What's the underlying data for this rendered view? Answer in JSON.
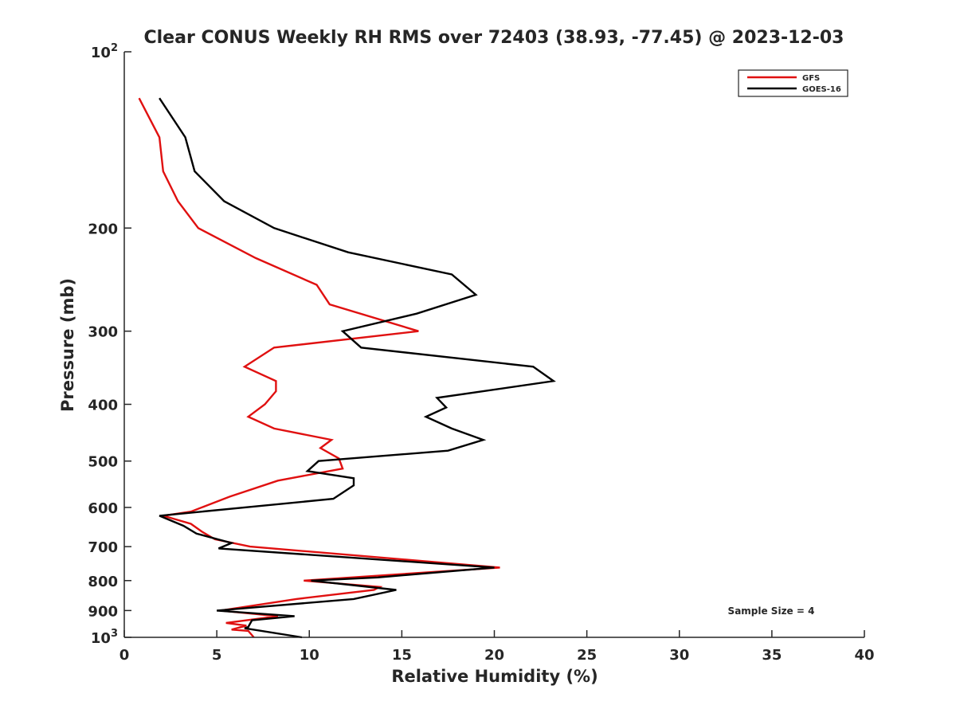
{
  "chart_data": {
    "type": "line",
    "title": "Clear CONUS Weekly RH RMS over 72403 (38.93, -77.45) @ 2023-12-03",
    "xlabel": "Relative Humidity (%)",
    "ylabel": "Pressure (mb)",
    "xlim": [
      0,
      40
    ],
    "ylim": [
      100,
      1000
    ],
    "y_scale": "log",
    "y_reversed": true,
    "x_ticks": [
      "0",
      "5",
      "10",
      "15",
      "20",
      "25",
      "30",
      "35",
      "40"
    ],
    "y_ticks": [
      {
        "value": 100,
        "base": "10",
        "sup": "2"
      },
      {
        "value": 200,
        "label": "200"
      },
      {
        "value": 300,
        "label": "300"
      },
      {
        "value": 400,
        "label": "400"
      },
      {
        "value": 500,
        "label": "500"
      },
      {
        "value": 600,
        "label": "600"
      },
      {
        "value": 700,
        "label": "700"
      },
      {
        "value": 800,
        "label": "800"
      },
      {
        "value": 900,
        "label": "900"
      },
      {
        "value": 1000,
        "base": "10",
        "sup": "3"
      }
    ],
    "legend_position": "top-right",
    "grid": false,
    "annotation": "Sample Size = 4",
    "series": [
      {
        "name": "GFS",
        "color": "#e01010",
        "points": [
          {
            "x": 0.8,
            "y": 120
          },
          {
            "x": 1.9,
            "y": 140
          },
          {
            "x": 2.1,
            "y": 160
          },
          {
            "x": 2.9,
            "y": 180
          },
          {
            "x": 4.0,
            "y": 200
          },
          {
            "x": 7.1,
            "y": 225
          },
          {
            "x": 10.4,
            "y": 250
          },
          {
            "x": 11.1,
            "y": 270
          },
          {
            "x": 15.9,
            "y": 300
          },
          {
            "x": 8.1,
            "y": 320
          },
          {
            "x": 6.5,
            "y": 345
          },
          {
            "x": 8.2,
            "y": 365
          },
          {
            "x": 8.2,
            "y": 380
          },
          {
            "x": 7.6,
            "y": 400
          },
          {
            "x": 6.7,
            "y": 420
          },
          {
            "x": 8.1,
            "y": 440
          },
          {
            "x": 11.2,
            "y": 460
          },
          {
            "x": 10.6,
            "y": 475
          },
          {
            "x": 11.6,
            "y": 495
          },
          {
            "x": 11.8,
            "y": 515
          },
          {
            "x": 8.3,
            "y": 540
          },
          {
            "x": 5.7,
            "y": 575
          },
          {
            "x": 3.6,
            "y": 610
          },
          {
            "x": 2.1,
            "y": 620
          },
          {
            "x": 3.6,
            "y": 640
          },
          {
            "x": 4.2,
            "y": 660
          },
          {
            "x": 4.9,
            "y": 680
          },
          {
            "x": 6.8,
            "y": 700
          },
          {
            "x": 20.3,
            "y": 760
          },
          {
            "x": 9.7,
            "y": 800
          },
          {
            "x": 13.8,
            "y": 820
          },
          {
            "x": 13.5,
            "y": 830
          },
          {
            "x": 9.3,
            "y": 860
          },
          {
            "x": 5.2,
            "y": 900
          },
          {
            "x": 8.3,
            "y": 920
          },
          {
            "x": 5.5,
            "y": 945
          },
          {
            "x": 6.6,
            "y": 955
          },
          {
            "x": 5.8,
            "y": 970
          },
          {
            "x": 6.7,
            "y": 975
          },
          {
            "x": 7.0,
            "y": 1000
          }
        ]
      },
      {
        "name": "GOES-16",
        "color": "#000000",
        "points": [
          {
            "x": 1.9,
            "y": 120
          },
          {
            "x": 3.3,
            "y": 140
          },
          {
            "x": 3.8,
            "y": 160
          },
          {
            "x": 5.4,
            "y": 180
          },
          {
            "x": 8.1,
            "y": 200
          },
          {
            "x": 12.1,
            "y": 220
          },
          {
            "x": 17.7,
            "y": 240
          },
          {
            "x": 19.0,
            "y": 260
          },
          {
            "x": 15.8,
            "y": 280
          },
          {
            "x": 11.8,
            "y": 300
          },
          {
            "x": 12.8,
            "y": 320
          },
          {
            "x": 22.1,
            "y": 345
          },
          {
            "x": 23.2,
            "y": 365
          },
          {
            "x": 16.9,
            "y": 390
          },
          {
            "x": 17.4,
            "y": 405
          },
          {
            "x": 16.3,
            "y": 420
          },
          {
            "x": 17.7,
            "y": 440
          },
          {
            "x": 19.4,
            "y": 460
          },
          {
            "x": 17.5,
            "y": 480
          },
          {
            "x": 10.5,
            "y": 500
          },
          {
            "x": 9.9,
            "y": 520
          },
          {
            "x": 12.4,
            "y": 535
          },
          {
            "x": 12.4,
            "y": 550
          },
          {
            "x": 11.3,
            "y": 580
          },
          {
            "x": 1.9,
            "y": 620
          },
          {
            "x": 3.2,
            "y": 645
          },
          {
            "x": 3.9,
            "y": 665
          },
          {
            "x": 5.8,
            "y": 690
          },
          {
            "x": 5.1,
            "y": 705
          },
          {
            "x": 20.0,
            "y": 760
          },
          {
            "x": 13.7,
            "y": 790
          },
          {
            "x": 10.1,
            "y": 800
          },
          {
            "x": 14.7,
            "y": 830
          },
          {
            "x": 12.4,
            "y": 860
          },
          {
            "x": 5.0,
            "y": 900
          },
          {
            "x": 9.2,
            "y": 920
          },
          {
            "x": 6.9,
            "y": 935
          },
          {
            "x": 6.7,
            "y": 960
          },
          {
            "x": 6.5,
            "y": 965
          },
          {
            "x": 9.6,
            "y": 1000
          }
        ]
      }
    ]
  }
}
